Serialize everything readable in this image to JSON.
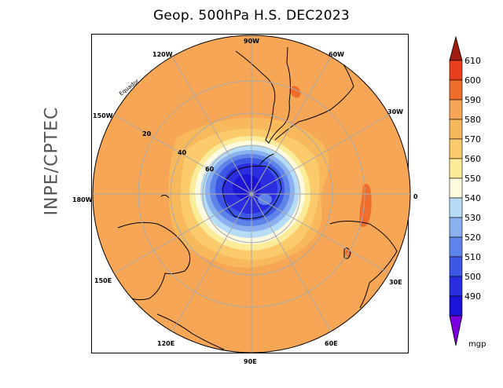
{
  "title": "Geop. 500hPa H.S. DEC2023",
  "side_label": "INPE/CPTEC",
  "equator_label": "Equador",
  "longitude_labels": {
    "lon_90w": "90W",
    "lon_60w": "60W",
    "lon_30w": "30W",
    "lon_0": "0",
    "lon_30e": "30E",
    "lon_60e": "60E",
    "lon_90e": "90E",
    "lon_120e": "120E",
    "lon_150e": "150E",
    "lon_180w": "180W",
    "lon_150w": "150W",
    "lon_120w": "120W"
  },
  "latitude_labels": {
    "lat_20": "20",
    "lat_40": "40",
    "lat_60": "60"
  },
  "colorbar": {
    "levels": [
      "610",
      "600",
      "590",
      "580",
      "570",
      "560",
      "550",
      "540",
      "530",
      "520",
      "510",
      "500",
      "490"
    ],
    "unit": "mgp",
    "colors": [
      "#a01c10",
      "#e8401c",
      "#f06e2c",
      "#f6a654",
      "#fbca6a",
      "#fcec9a",
      "#fefae0",
      "#b6dcf6",
      "#8ab0f0",
      "#5e84ea",
      "#3c56e6",
      "#2a2ee0",
      "#1c14d6",
      "#7a00e0"
    ]
  },
  "colors": {
    "ocean_field": "#f6a654",
    "ring_580": "#f8b95c",
    "ring_570": "#fbca6a",
    "ring_560": "#fcec9a",
    "ring_550": "#fefae0",
    "ring_540": "#b6dcf6",
    "ring_530": "#8ab0f0",
    "ring_520": "#5e84ea",
    "ring_510": "#3c56e6",
    "ring_500": "#2a2ee0",
    "ring_490": "#1c14d6",
    "max_590": "#f06e2c",
    "grid": "#aaaaaa"
  }
}
